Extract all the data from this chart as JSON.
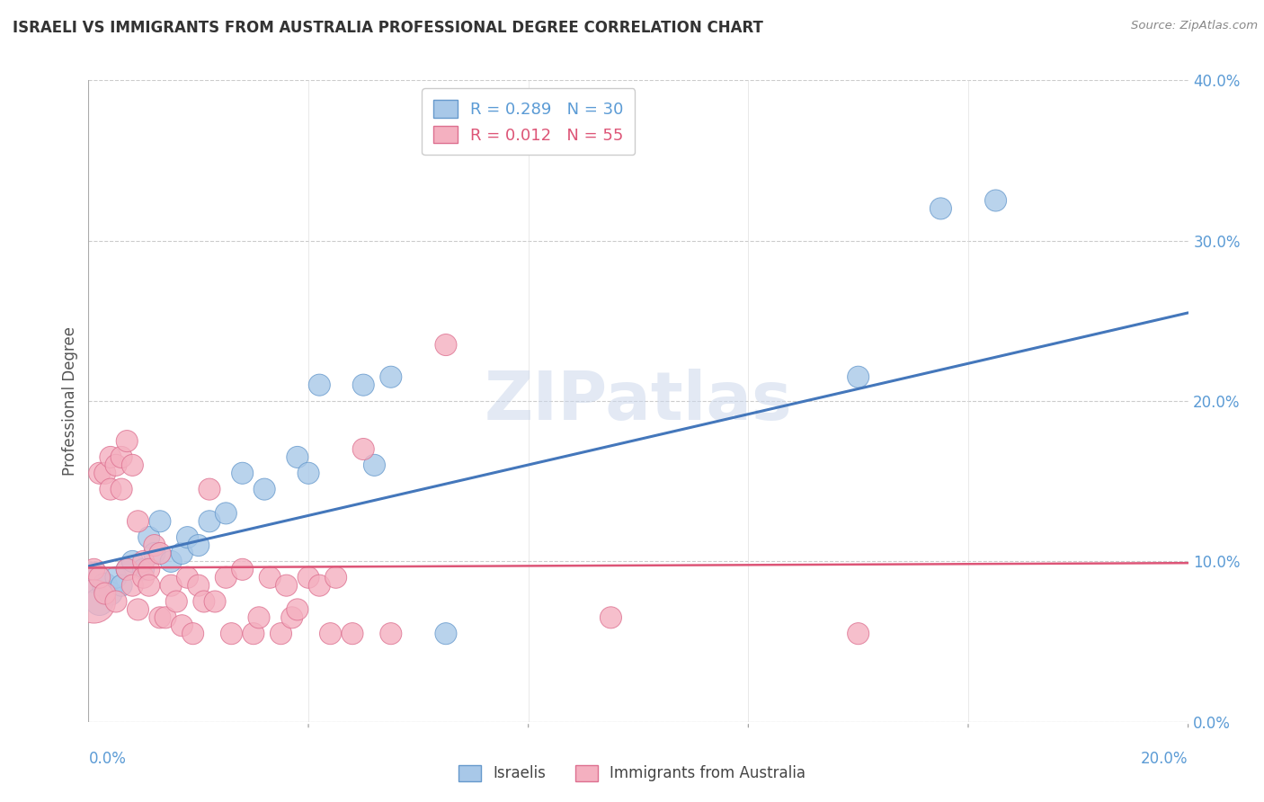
{
  "title": "ISRAELI VS IMMIGRANTS FROM AUSTRALIA PROFESSIONAL DEGREE CORRELATION CHART",
  "source": "Source: ZipAtlas.com",
  "ylabel": "Professional Degree",
  "watermark": "ZIPatlas",
  "series": [
    {
      "name": "Israelis",
      "color": "#a8c8e8",
      "edge_color": "#6699cc",
      "R": 0.289,
      "N": 30,
      "x": [
        0.001,
        0.002,
        0.003,
        0.004,
        0.005,
        0.006,
        0.007,
        0.008,
        0.01,
        0.011,
        0.012,
        0.013,
        0.015,
        0.017,
        0.018,
        0.02,
        0.022,
        0.025,
        0.028,
        0.032,
        0.038,
        0.04,
        0.042,
        0.05,
        0.052,
        0.055,
        0.065,
        0.14,
        0.155,
        0.165
      ],
      "y": [
        0.09,
        0.075,
        0.085,
        0.08,
        0.09,
        0.085,
        0.095,
        0.1,
        0.095,
        0.115,
        0.105,
        0.125,
        0.1,
        0.105,
        0.115,
        0.11,
        0.125,
        0.13,
        0.155,
        0.145,
        0.165,
        0.155,
        0.21,
        0.21,
        0.16,
        0.215,
        0.055,
        0.215,
        0.32,
        0.325
      ],
      "sizes": [
        600,
        500,
        400,
        350,
        300,
        300,
        300,
        300,
        300,
        300,
        300,
        300,
        300,
        300,
        300,
        300,
        300,
        300,
        300,
        300,
        300,
        300,
        300,
        300,
        300,
        300,
        300,
        300,
        300,
        300
      ]
    },
    {
      "name": "Immigrants from Australia",
      "color": "#f4b0c0",
      "edge_color": "#dd7090",
      "R": 0.012,
      "N": 55,
      "x": [
        0.001,
        0.001,
        0.002,
        0.002,
        0.003,
        0.003,
        0.004,
        0.004,
        0.005,
        0.005,
        0.006,
        0.006,
        0.007,
        0.007,
        0.008,
        0.008,
        0.009,
        0.009,
        0.01,
        0.01,
        0.011,
        0.011,
        0.012,
        0.013,
        0.013,
        0.014,
        0.015,
        0.016,
        0.017,
        0.018,
        0.019,
        0.02,
        0.021,
        0.022,
        0.023,
        0.025,
        0.026,
        0.028,
        0.03,
        0.031,
        0.033,
        0.035,
        0.036,
        0.037,
        0.038,
        0.04,
        0.042,
        0.044,
        0.045,
        0.048,
        0.05,
        0.055,
        0.065,
        0.095,
        0.14
      ],
      "y": [
        0.095,
        0.075,
        0.155,
        0.09,
        0.155,
        0.08,
        0.165,
        0.145,
        0.16,
        0.075,
        0.165,
        0.145,
        0.175,
        0.095,
        0.16,
        0.085,
        0.125,
        0.07,
        0.1,
        0.09,
        0.095,
        0.085,
        0.11,
        0.105,
        0.065,
        0.065,
        0.085,
        0.075,
        0.06,
        0.09,
        0.055,
        0.085,
        0.075,
        0.145,
        0.075,
        0.09,
        0.055,
        0.095,
        0.055,
        0.065,
        0.09,
        0.055,
        0.085,
        0.065,
        0.07,
        0.09,
        0.085,
        0.055,
        0.09,
        0.055,
        0.17,
        0.055,
        0.235,
        0.065,
        0.055
      ],
      "sizes": [
        300,
        1200,
        300,
        300,
        300,
        300,
        300,
        300,
        300,
        300,
        300,
        300,
        300,
        300,
        300,
        300,
        300,
        300,
        300,
        300,
        300,
        300,
        300,
        300,
        300,
        300,
        300,
        300,
        300,
        300,
        300,
        300,
        300,
        300,
        300,
        300,
        300,
        300,
        300,
        300,
        300,
        300,
        300,
        300,
        300,
        300,
        300,
        300,
        300,
        300,
        300,
        300,
        300,
        300,
        300
      ]
    }
  ],
  "xlim": [
    0.0,
    0.2
  ],
  "ylim": [
    0.0,
    0.4
  ],
  "xticks": [
    0.0,
    0.04,
    0.08,
    0.12,
    0.16,
    0.2
  ],
  "yticks": [
    0.0,
    0.1,
    0.2,
    0.3,
    0.4
  ],
  "ytick_labels_right": [
    "0.0%",
    "10.0%",
    "20.0%",
    "30.0%",
    "40.0%"
  ],
  "grid_color": "#cccccc",
  "background_color": "#ffffff",
  "title_color": "#333333",
  "axis_color": "#5b9bd5",
  "legend_box_blue": "#a8c8e8",
  "legend_box_pink": "#f4b0c0",
  "legend_edge_blue": "#6699cc",
  "legend_edge_pink": "#dd7090",
  "legend_text_color_blue": "#5b9bd5",
  "legend_text_color_pink": "#dd5577",
  "trend_blue_x0": 0.0,
  "trend_blue_y0": 0.097,
  "trend_blue_x1": 0.2,
  "trend_blue_y1": 0.255,
  "trend_pink_x0": 0.0,
  "trend_pink_y0": 0.096,
  "trend_pink_x1": 0.2,
  "trend_pink_y1": 0.099
}
